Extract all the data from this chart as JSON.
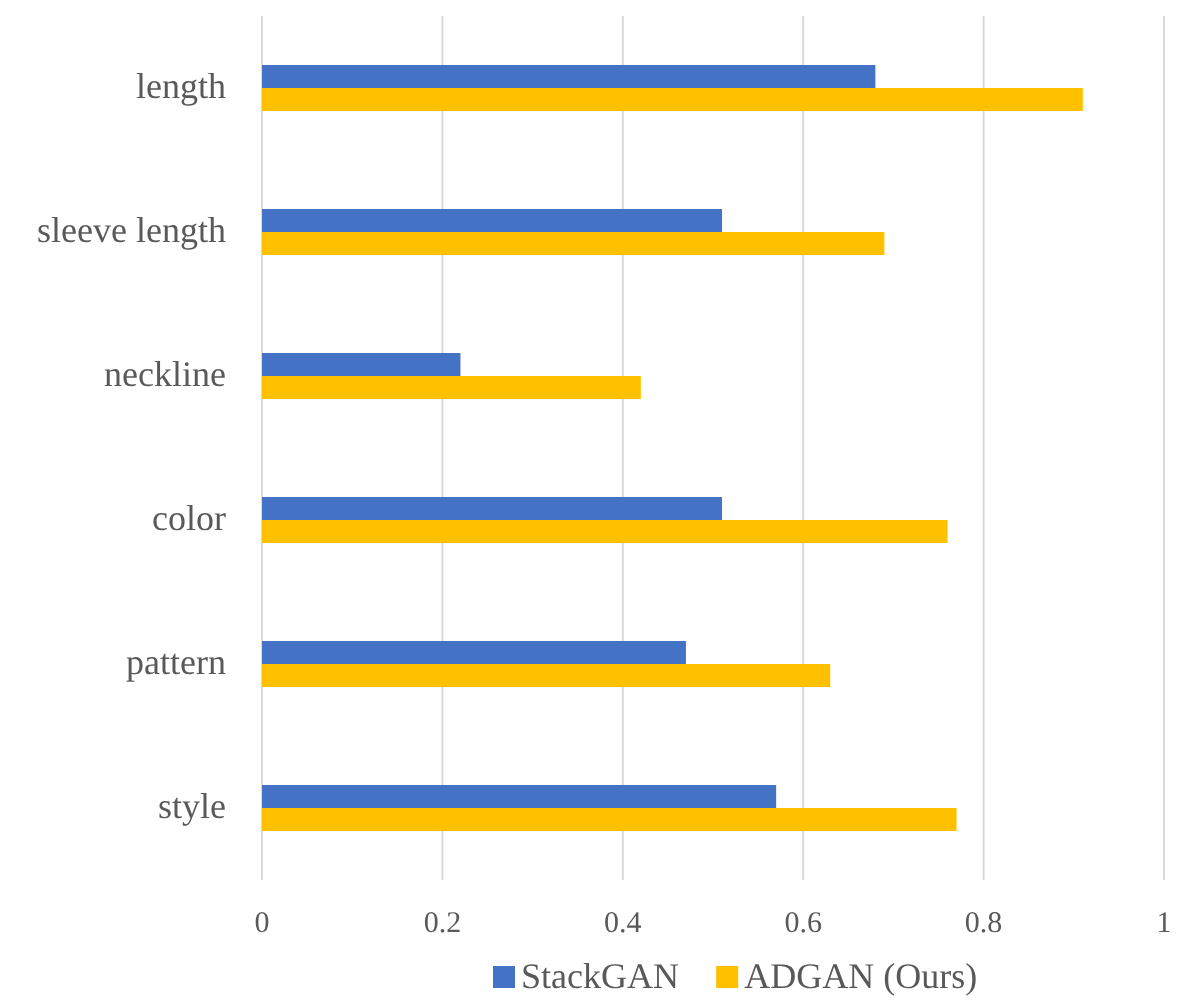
{
  "chart_data": {
    "type": "bar",
    "orientation": "horizontal",
    "categories": [
      "length",
      "sleeve length",
      "neckline",
      "color",
      "pattern",
      "style"
    ],
    "series": [
      {
        "name": "StackGAN",
        "color": "#4472c4",
        "values": [
          0.68,
          0.51,
          0.22,
          0.51,
          0.47,
          0.57
        ]
      },
      {
        "name": "ADGAN (Ours)",
        "color": "#ffc000",
        "values": [
          0.91,
          0.69,
          0.42,
          0.76,
          0.63,
          0.77
        ]
      }
    ],
    "xlim": [
      0,
      1
    ],
    "xticks": [
      0,
      0.2,
      0.4,
      0.6,
      0.8,
      1
    ],
    "grid": "x",
    "legend": "bottom"
  }
}
